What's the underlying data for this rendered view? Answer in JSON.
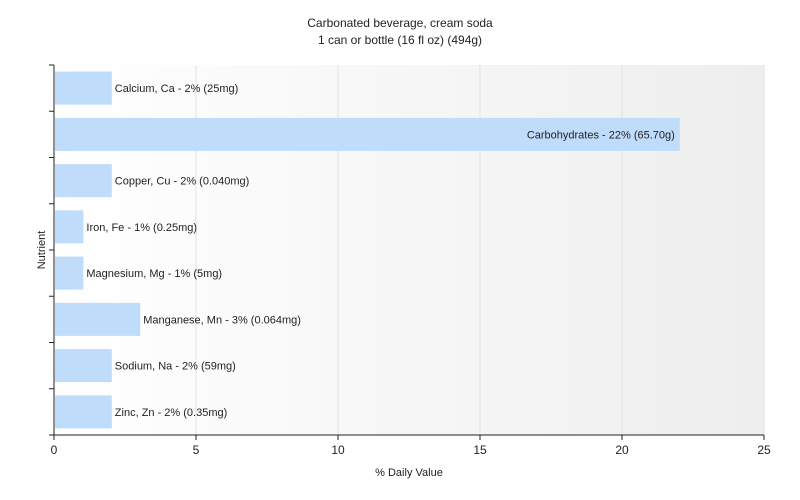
{
  "chart_data": {
    "type": "bar",
    "orientation": "horizontal",
    "title": "Carbonated beverage, cream soda",
    "subtitle": "1 can or bottle (16 fl oz) (494g)",
    "xlabel": "% Daily Value",
    "ylabel": "Nutrient",
    "xlim": [
      0,
      25
    ],
    "xticks": [
      0,
      5,
      10,
      15,
      20,
      25
    ],
    "grid": true,
    "categories": [
      "Calcium, Ca",
      "Carbohydrates",
      "Copper, Cu",
      "Iron, Fe",
      "Magnesium, Mg",
      "Manganese, Mn",
      "Sodium, Na",
      "Zinc, Zn"
    ],
    "values": [
      2,
      22,
      2,
      1,
      1,
      3,
      2,
      2
    ],
    "data_labels": [
      "Calcium, Ca - 2% (25mg)",
      "Carbohydrates - 22% (65.70g)",
      "Copper, Cu - 2% (0.040mg)",
      "Iron, Fe - 1% (0.25mg)",
      "Magnesium, Mg - 1% (5mg)",
      "Manganese, Mn - 3% (0.064mg)",
      "Sodium, Na - 2% (59mg)",
      "Zinc, Zn - 2% (0.35mg)"
    ],
    "colors": {
      "bar": "#bfdcfb",
      "grid": "#e2e2e2",
      "axis": "#222222"
    }
  }
}
